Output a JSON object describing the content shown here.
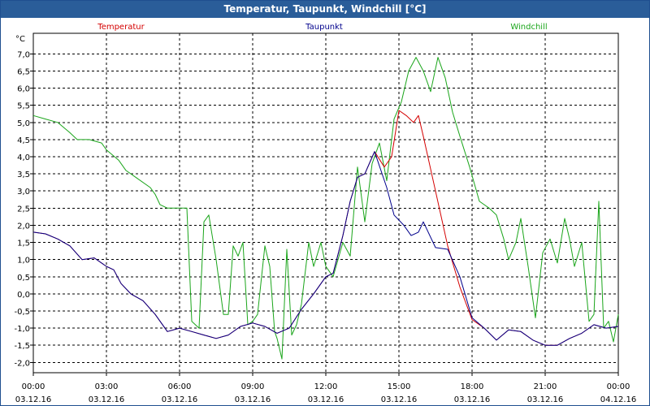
{
  "window": {
    "title": "Temperatur, Taupunkt, Windchill [°C]"
  },
  "chart_data": {
    "type": "line",
    "title": "Temperatur, Taupunkt, Windchill [°C]",
    "ylabel": "°C",
    "ylim": [
      -2.3,
      7.6
    ],
    "xlim": [
      0,
      24
    ],
    "grid": true,
    "legend_position": "top",
    "y_ticks": [
      {
        "value": 7.0,
        "label": "7,0"
      },
      {
        "value": 6.5,
        "label": "6,5"
      },
      {
        "value": 6.0,
        "label": "6,0"
      },
      {
        "value": 5.5,
        "label": "5,5"
      },
      {
        "value": 5.0,
        "label": "5,0"
      },
      {
        "value": 4.5,
        "label": "4,5"
      },
      {
        "value": 4.0,
        "label": "4,0"
      },
      {
        "value": 3.5,
        "label": "3,5"
      },
      {
        "value": 3.0,
        "label": "3,0"
      },
      {
        "value": 2.5,
        "label": "2,5"
      },
      {
        "value": 2.0,
        "label": "2,0"
      },
      {
        "value": 1.5,
        "label": "1,5"
      },
      {
        "value": 1.0,
        "label": "1,0"
      },
      {
        "value": 0.5,
        "label": "0,5"
      },
      {
        "value": 0.0,
        "label": "0,0"
      },
      {
        "value": -0.5,
        "label": "-0,5"
      },
      {
        "value": -1.0,
        "label": "-1,0"
      },
      {
        "value": -1.5,
        "label": "-1,5"
      },
      {
        "value": -2.0,
        "label": "-2,0"
      }
    ],
    "x_ticks": [
      {
        "value": 0,
        "time": "00:00",
        "date": "03.12.16"
      },
      {
        "value": 3,
        "time": "03:00",
        "date": "03.12.16"
      },
      {
        "value": 6,
        "time": "06:00",
        "date": "03.12.16"
      },
      {
        "value": 9,
        "time": "09:00",
        "date": "03.12.16"
      },
      {
        "value": 12,
        "time": "12:00",
        "date": "03.12.16"
      },
      {
        "value": 15,
        "time": "15:00",
        "date": "03.12.16"
      },
      {
        "value": 18,
        "time": "18:00",
        "date": "03.12.16"
      },
      {
        "value": 21,
        "time": "21:00",
        "date": "03.12.16"
      },
      {
        "value": 24,
        "time": "00:00",
        "date": "04.12.16"
      }
    ],
    "series": [
      {
        "name": "Temperatur",
        "color": "#d40000",
        "points": [
          [
            0,
            1.8
          ],
          [
            0.5,
            1.75
          ],
          [
            1,
            1.6
          ],
          [
            1.5,
            1.4
          ],
          [
            2,
            1.0
          ],
          [
            2.5,
            1.05
          ],
          [
            3,
            0.8
          ],
          [
            3.3,
            0.7
          ],
          [
            3.6,
            0.3
          ],
          [
            4,
            0
          ],
          [
            4.5,
            -0.2
          ],
          [
            5,
            -0.6
          ],
          [
            5.5,
            -1.1
          ],
          [
            6,
            -1.0
          ],
          [
            6.5,
            -1.1
          ],
          [
            7,
            -1.2
          ],
          [
            7.5,
            -1.3
          ],
          [
            8,
            -1.2
          ],
          [
            8.5,
            -0.95
          ],
          [
            9,
            -0.85
          ],
          [
            9.5,
            -0.95
          ],
          [
            10,
            -1.15
          ],
          [
            10.5,
            -1.0
          ],
          [
            11,
            -0.45
          ],
          [
            11.5,
            0
          ],
          [
            12,
            0.5
          ],
          [
            12.3,
            0.6
          ],
          [
            12.7,
            1.7
          ],
          [
            13,
            2.7
          ],
          [
            13.3,
            3.4
          ],
          [
            13.6,
            3.5
          ],
          [
            14,
            4.15
          ],
          [
            14.4,
            3.7
          ],
          [
            14.7,
            4.0
          ],
          [
            15,
            5.35
          ],
          [
            15.3,
            5.2
          ],
          [
            15.6,
            5.0
          ],
          [
            15.8,
            5.2
          ],
          [
            16,
            4.6
          ],
          [
            16.5,
            3.0
          ],
          [
            17,
            1.4
          ],
          [
            17.5,
            0.2
          ],
          [
            18,
            -0.75
          ],
          [
            18.5,
            -1.0
          ],
          [
            19,
            -1.35
          ],
          [
            19.5,
            -1.05
          ],
          [
            20,
            -1.1
          ],
          [
            20.5,
            -1.35
          ],
          [
            21,
            -1.5
          ],
          [
            21.5,
            -1.5
          ],
          [
            22,
            -1.3
          ],
          [
            22.5,
            -1.15
          ],
          [
            23,
            -0.9
          ],
          [
            23.5,
            -1.0
          ],
          [
            24,
            -0.95
          ]
        ]
      },
      {
        "name": "Taupunkt",
        "color": "#00008b",
        "points": [
          [
            0,
            1.8
          ],
          [
            0.5,
            1.75
          ],
          [
            1,
            1.6
          ],
          [
            1.5,
            1.4
          ],
          [
            2,
            1.0
          ],
          [
            2.5,
            1.05
          ],
          [
            3,
            0.8
          ],
          [
            3.3,
            0.7
          ],
          [
            3.6,
            0.3
          ],
          [
            4,
            0
          ],
          [
            4.5,
            -0.2
          ],
          [
            5,
            -0.6
          ],
          [
            5.5,
            -1.1
          ],
          [
            6,
            -1.0
          ],
          [
            6.5,
            -1.1
          ],
          [
            7,
            -1.2
          ],
          [
            7.5,
            -1.3
          ],
          [
            8,
            -1.2
          ],
          [
            8.5,
            -0.95
          ],
          [
            9,
            -0.85
          ],
          [
            9.5,
            -0.95
          ],
          [
            10,
            -1.15
          ],
          [
            10.5,
            -1.0
          ],
          [
            11,
            -0.45
          ],
          [
            11.5,
            0
          ],
          [
            12,
            0.5
          ],
          [
            12.3,
            0.6
          ],
          [
            12.7,
            1.7
          ],
          [
            13,
            2.7
          ],
          [
            13.3,
            3.4
          ],
          [
            13.6,
            3.5
          ],
          [
            14,
            4.15
          ],
          [
            14.5,
            3.1
          ],
          [
            14.8,
            2.3
          ],
          [
            15.2,
            2.0
          ],
          [
            15.5,
            1.7
          ],
          [
            15.8,
            1.8
          ],
          [
            16,
            2.1
          ],
          [
            16.5,
            1.35
          ],
          [
            17,
            1.3
          ],
          [
            17.5,
            0.5
          ],
          [
            18,
            -0.7
          ],
          [
            18.5,
            -1.0
          ],
          [
            19,
            -1.35
          ],
          [
            19.5,
            -1.05
          ],
          [
            20,
            -1.1
          ],
          [
            20.5,
            -1.35
          ],
          [
            21,
            -1.5
          ],
          [
            21.5,
            -1.5
          ],
          [
            22,
            -1.3
          ],
          [
            22.5,
            -1.15
          ],
          [
            23,
            -0.9
          ],
          [
            23.5,
            -1.0
          ],
          [
            24,
            -0.95
          ]
        ]
      },
      {
        "name": "Windchill",
        "color": "#1aa51a",
        "points": [
          [
            0,
            5.2
          ],
          [
            0.5,
            5.1
          ],
          [
            1,
            5.0
          ],
          [
            1.5,
            4.7
          ],
          [
            1.8,
            4.5
          ],
          [
            2.3,
            4.5
          ],
          [
            2.8,
            4.4
          ],
          [
            3,
            4.2
          ],
          [
            3.5,
            3.9
          ],
          [
            3.8,
            3.6
          ],
          [
            4.2,
            3.4
          ],
          [
            4.8,
            3.1
          ],
          [
            5,
            2.9
          ],
          [
            5.2,
            2.6
          ],
          [
            5.5,
            2.5
          ],
          [
            6,
            2.5
          ],
          [
            6.3,
            2.5
          ],
          [
            6.5,
            -0.8
          ],
          [
            6.8,
            -1.0
          ],
          [
            7,
            2.1
          ],
          [
            7.2,
            2.3
          ],
          [
            7.5,
            1.0
          ],
          [
            7.8,
            -0.6
          ],
          [
            8,
            -0.6
          ],
          [
            8.2,
            1.4
          ],
          [
            8.4,
            1.1
          ],
          [
            8.6,
            1.5
          ],
          [
            8.8,
            -0.9
          ],
          [
            9,
            -0.8
          ],
          [
            9.2,
            -0.6
          ],
          [
            9.5,
            1.4
          ],
          [
            9.7,
            0.8
          ],
          [
            9.9,
            -1.1
          ],
          [
            10,
            -1.3
          ],
          [
            10.2,
            -1.9
          ],
          [
            10.4,
            1.3
          ],
          [
            10.6,
            -1.2
          ],
          [
            10.8,
            -0.9
          ],
          [
            11,
            -0.3
          ],
          [
            11.3,
            1.5
          ],
          [
            11.5,
            0.8
          ],
          [
            11.8,
            1.5
          ],
          [
            12,
            0.8
          ],
          [
            12.3,
            0.5
          ],
          [
            12.7,
            1.5
          ],
          [
            13,
            1.1
          ],
          [
            13.3,
            3.7
          ],
          [
            13.6,
            2.1
          ],
          [
            13.9,
            3.8
          ],
          [
            14.2,
            4.4
          ],
          [
            14.5,
            3.3
          ],
          [
            14.8,
            5.1
          ],
          [
            15.1,
            5.6
          ],
          [
            15.4,
            6.5
          ],
          [
            15.7,
            6.9
          ],
          [
            16,
            6.5
          ],
          [
            16.3,
            5.9
          ],
          [
            16.6,
            6.9
          ],
          [
            16.9,
            6.3
          ],
          [
            17.2,
            5.3
          ],
          [
            17.5,
            4.6
          ],
          [
            17.9,
            3.7
          ],
          [
            18.3,
            2.7
          ],
          [
            18.7,
            2.5
          ],
          [
            19,
            2.3
          ],
          [
            19.3,
            1.6
          ],
          [
            19.5,
            1.0
          ],
          [
            19.8,
            1.5
          ],
          [
            20,
            2.2
          ],
          [
            20.3,
            0.8
          ],
          [
            20.6,
            -0.7
          ],
          [
            20.9,
            1.2
          ],
          [
            21.2,
            1.6
          ],
          [
            21.5,
            0.9
          ],
          [
            21.8,
            2.2
          ],
          [
            22,
            1.6
          ],
          [
            22.2,
            0.8
          ],
          [
            22.5,
            1.5
          ],
          [
            22.8,
            -0.8
          ],
          [
            23,
            -0.6
          ],
          [
            23.2,
            2.7
          ],
          [
            23.4,
            -1.0
          ],
          [
            23.6,
            -0.8
          ],
          [
            23.8,
            -1.4
          ],
          [
            24,
            -0.6
          ]
        ]
      }
    ]
  }
}
